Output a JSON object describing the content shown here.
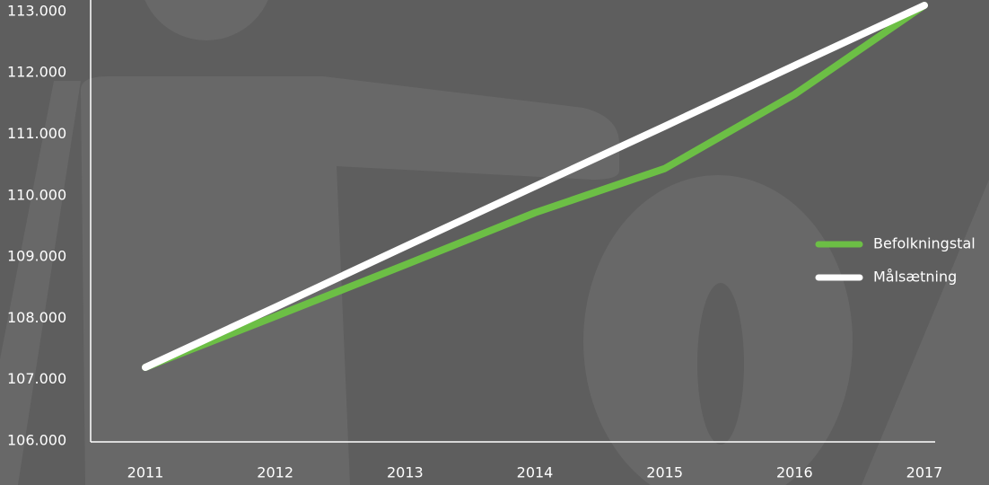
{
  "chart_data": {
    "type": "line",
    "categories": [
      "2011",
      "2012",
      "2013",
      "2014",
      "2015",
      "2016",
      "2017"
    ],
    "series": [
      {
        "name": "Befolkningstal",
        "color": "#6cbf45",
        "values": [
          107200,
          108030,
          108870,
          109720,
          110440,
          111650,
          113100
        ]
      },
      {
        "name": "Målsætning",
        "color": "#ffffff",
        "values": [
          107200,
          108180,
          109170,
          110150,
          111130,
          112120,
          113100
        ]
      }
    ],
    "ylim": [
      106000,
      113100
    ],
    "yticks": [
      {
        "value": 106000,
        "label": "106.000"
      },
      {
        "value": 107000,
        "label": "107.000"
      },
      {
        "value": 108000,
        "label": "108.000"
      },
      {
        "value": 109000,
        "label": "109.000"
      },
      {
        "value": 110000,
        "label": "110.000"
      },
      {
        "value": 111000,
        "label": "111.000"
      },
      {
        "value": 112000,
        "label": "112.000"
      },
      {
        "value": 113000,
        "label": "113.000"
      }
    ],
    "legend": "right"
  }
}
